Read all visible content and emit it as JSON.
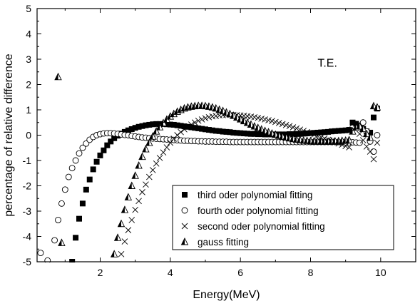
{
  "chart_data": {
    "type": "scatter",
    "title": "",
    "xlabel": "Energy(MeV)",
    "ylabel": "percentage of relative difference",
    "xlim": [
      0.2,
      11
    ],
    "ylim": [
      -5,
      5
    ],
    "x_ticks": [
      2,
      4,
      6,
      8,
      10
    ],
    "y_ticks": [
      -5,
      -4,
      -3,
      -2,
      -1,
      0,
      1,
      2,
      3,
      4,
      5
    ],
    "grid": false,
    "legend_position": "bottom-right",
    "annotations": [
      {
        "text": "T.E.",
        "x": 8.2,
        "y": 2.7
      }
    ],
    "series": [
      {
        "name": "third oder polynomial fitting",
        "marker": "filled-square",
        "x": [
          1.2,
          1.3,
          1.4,
          1.5,
          1.6,
          1.7,
          1.8,
          1.9,
          2.0,
          2.1,
          2.2,
          2.3,
          2.4,
          2.5,
          2.6,
          2.7,
          2.8,
          2.9,
          3.0,
          3.1,
          3.2,
          3.3,
          3.4,
          3.5,
          3.6,
          3.7,
          3.8,
          3.9,
          4.0,
          4.1,
          4.2,
          4.3,
          4.4,
          4.5,
          4.6,
          4.7,
          4.8,
          4.9,
          5.0,
          5.1,
          5.2,
          5.3,
          5.4,
          5.5,
          5.6,
          5.7,
          5.8,
          5.9,
          6.0,
          6.1,
          6.2,
          6.3,
          6.4,
          6.5,
          6.6,
          6.7,
          6.8,
          6.9,
          7.0,
          7.1,
          7.2,
          7.3,
          7.4,
          7.5,
          7.6,
          7.7,
          7.8,
          7.9,
          8.0,
          8.1,
          8.2,
          8.3,
          8.4,
          8.5,
          8.6,
          8.7,
          8.8,
          8.9,
          9.0,
          9.1,
          9.2,
          9.3,
          9.4,
          9.5,
          9.6,
          9.7,
          9.8,
          9.9
        ],
        "y": [
          -5.0,
          -4.05,
          -3.3,
          -2.7,
          -2.15,
          -1.75,
          -1.35,
          -1.05,
          -0.8,
          -0.6,
          -0.4,
          -0.25,
          -0.12,
          -0.02,
          0.06,
          0.13,
          0.19,
          0.24,
          0.29,
          0.33,
          0.36,
          0.39,
          0.41,
          0.43,
          0.44,
          0.44,
          0.44,
          0.43,
          0.42,
          0.41,
          0.39,
          0.37,
          0.35,
          0.33,
          0.31,
          0.29,
          0.27,
          0.25,
          0.23,
          0.21,
          0.19,
          0.17,
          0.16,
          0.14,
          0.13,
          0.12,
          0.1,
          0.09,
          0.08,
          0.07,
          0.06,
          0.05,
          0.05,
          0.04,
          0.04,
          0.03,
          0.03,
          0.03,
          0.03,
          0.03,
          0.03,
          0.03,
          0.04,
          0.04,
          0.05,
          0.05,
          0.06,
          0.07,
          0.08,
          0.09,
          0.1,
          0.11,
          0.12,
          0.13,
          0.15,
          0.16,
          0.17,
          0.18,
          0.19,
          0.21,
          0.5,
          0.45,
          0.35,
          0.25,
          0.15,
          0.1,
          0.7,
          1.05
        ]
      },
      {
        "name": "fourth oder polynomial fitting",
        "marker": "open-circle",
        "x": [
          0.3,
          0.5,
          0.7,
          0.8,
          0.9,
          1.0,
          1.1,
          1.2,
          1.3,
          1.4,
          1.5,
          1.6,
          1.7,
          1.8,
          1.9,
          2.0,
          2.1,
          2.2,
          2.3,
          2.4,
          2.5,
          2.6,
          2.7,
          2.8,
          2.9,
          3.0,
          3.1,
          3.2,
          3.3,
          3.4,
          3.5,
          3.6,
          3.7,
          3.8,
          3.9,
          4.0,
          4.1,
          4.2,
          4.3,
          4.4,
          4.5,
          4.6,
          4.7,
          4.8,
          4.9,
          5.0,
          5.1,
          5.2,
          5.3,
          5.4,
          5.5,
          5.6,
          5.7,
          5.8,
          5.9,
          6.0,
          6.1,
          6.2,
          6.3,
          6.4,
          6.5,
          6.6,
          6.7,
          6.8,
          6.9,
          7.0,
          7.1,
          7.2,
          7.3,
          7.4,
          7.5,
          7.6,
          7.7,
          7.8,
          7.9,
          8.0,
          8.1,
          8.2,
          8.3,
          8.4,
          8.5,
          8.6,
          8.7,
          8.8,
          8.9,
          9.0,
          9.1,
          9.2,
          9.3,
          9.4,
          9.5,
          9.6,
          9.7,
          9.8,
          9.9
        ],
        "y": [
          -4.65,
          -4.95,
          -4.15,
          -3.35,
          -2.7,
          -2.15,
          -1.65,
          -1.3,
          -1.0,
          -0.72,
          -0.5,
          -0.33,
          -0.18,
          -0.07,
          0.0,
          0.04,
          0.07,
          0.08,
          0.08,
          0.07,
          0.05,
          0.03,
          0.01,
          0.0,
          -0.03,
          -0.05,
          -0.07,
          -0.09,
          -0.1,
          -0.12,
          -0.13,
          -0.14,
          -0.15,
          -0.16,
          -0.17,
          -0.18,
          -0.19,
          -0.2,
          -0.21,
          -0.22,
          -0.22,
          -0.23,
          -0.23,
          -0.24,
          -0.24,
          -0.25,
          -0.25,
          -0.25,
          -0.26,
          -0.26,
          -0.26,
          -0.26,
          -0.27,
          -0.27,
          -0.27,
          -0.27,
          -0.27,
          -0.27,
          -0.27,
          -0.27,
          -0.27,
          -0.27,
          -0.27,
          -0.27,
          -0.27,
          -0.27,
          -0.27,
          -0.27,
          -0.27,
          -0.27,
          -0.27,
          -0.27,
          -0.27,
          -0.27,
          -0.27,
          -0.27,
          -0.27,
          -0.27,
          -0.27,
          -0.27,
          -0.27,
          -0.27,
          -0.27,
          -0.27,
          -0.27,
          -0.28,
          -0.28,
          -0.28,
          -0.29,
          -0.3,
          0.5,
          0.15,
          -0.25,
          -0.65,
          0.0
        ]
      },
      {
        "name": "second oder polynomial fitting",
        "marker": "x",
        "x": [
          2.6,
          2.7,
          2.8,
          2.9,
          3.0,
          3.1,
          3.2,
          3.3,
          3.4,
          3.5,
          3.6,
          3.7,
          3.8,
          3.9,
          4.0,
          4.1,
          4.2,
          4.3,
          4.4,
          4.5,
          4.6,
          4.7,
          4.8,
          4.9,
          5.0,
          5.1,
          5.2,
          5.3,
          5.4,
          5.5,
          5.6,
          5.7,
          5.8,
          5.9,
          6.0,
          6.1,
          6.2,
          6.3,
          6.4,
          6.5,
          6.6,
          6.7,
          6.8,
          6.9,
          7.0,
          7.1,
          7.2,
          7.3,
          7.4,
          7.5,
          7.6,
          7.7,
          7.8,
          7.9,
          8.0,
          8.1,
          8.2,
          8.3,
          8.4,
          8.5,
          8.6,
          8.7,
          8.8,
          8.9,
          9.0,
          9.1,
          9.2,
          9.3,
          9.4,
          9.5,
          9.6,
          9.7,
          9.8,
          9.9
        ],
        "y": [
          -4.7,
          -4.2,
          -3.75,
          -3.35,
          -2.95,
          -2.6,
          -2.25,
          -1.95,
          -1.65,
          -1.38,
          -1.12,
          -0.9,
          -0.68,
          -0.48,
          -0.3,
          -0.14,
          0.0,
          0.12,
          0.23,
          0.33,
          0.42,
          0.5,
          0.57,
          0.62,
          0.67,
          0.71,
          0.74,
          0.76,
          0.78,
          0.79,
          0.8,
          0.8,
          0.8,
          0.79,
          0.78,
          0.77,
          0.75,
          0.73,
          0.71,
          0.68,
          0.65,
          0.62,
          0.59,
          0.56,
          0.52,
          0.48,
          0.44,
          0.4,
          0.36,
          0.31,
          0.27,
          0.22,
          0.17,
          0.12,
          0.07,
          0.02,
          -0.03,
          -0.08,
          -0.13,
          -0.18,
          -0.23,
          -0.28,
          -0.33,
          -0.38,
          -0.43,
          -0.48,
          0.45,
          0.3,
          0.05,
          -0.2,
          -0.45,
          -0.65,
          -0.95,
          -0.3
        ]
      },
      {
        "name": "gauss fitting",
        "marker": "half-filled-triangle",
        "x": [
          0.8,
          0.9,
          2.4,
          2.5,
          2.6,
          2.7,
          2.8,
          2.9,
          3.0,
          3.1,
          3.2,
          3.3,
          3.4,
          3.5,
          3.6,
          3.7,
          3.8,
          3.9,
          4.0,
          4.1,
          4.2,
          4.3,
          4.4,
          4.5,
          4.6,
          4.7,
          4.8,
          4.9,
          5.0,
          5.1,
          5.2,
          5.3,
          5.4,
          5.5,
          5.6,
          5.7,
          5.8,
          5.9,
          6.0,
          6.1,
          6.2,
          6.3,
          6.4,
          6.5,
          6.6,
          6.7,
          6.8,
          6.9,
          7.0,
          7.1,
          7.2,
          7.3,
          7.4,
          7.5,
          7.6,
          7.7,
          7.8,
          7.9,
          8.0,
          8.1,
          8.2,
          8.3,
          8.4,
          8.5,
          8.6,
          8.7,
          8.8,
          8.9,
          9.0,
          9.1,
          9.2,
          9.3,
          9.4,
          9.5,
          9.6,
          9.7,
          9.8,
          9.9
        ],
        "y": [
          2.3,
          -4.25,
          -4.7,
          -4.05,
          -3.5,
          -2.95,
          -2.45,
          -2.0,
          -1.6,
          -1.2,
          -0.85,
          -0.55,
          -0.3,
          -0.05,
          0.15,
          0.32,
          0.48,
          0.62,
          0.74,
          0.84,
          0.93,
          1.0,
          1.06,
          1.1,
          1.13,
          1.15,
          1.16,
          1.16,
          1.15,
          1.13,
          1.1,
          1.06,
          1.01,
          0.96,
          0.9,
          0.84,
          0.77,
          0.7,
          0.63,
          0.56,
          0.49,
          0.42,
          0.35,
          0.29,
          0.23,
          0.17,
          0.12,
          0.07,
          0.02,
          -0.02,
          -0.06,
          -0.09,
          -0.12,
          -0.15,
          -0.17,
          -0.19,
          -0.21,
          -0.22,
          -0.23,
          -0.24,
          -0.24,
          -0.25,
          -0.25,
          -0.25,
          -0.24,
          -0.24,
          -0.23,
          -0.22,
          -0.21,
          -0.19,
          0.15,
          0.3,
          0.35,
          0.25,
          0.05,
          -0.1,
          1.15,
          1.1
        ]
      }
    ]
  }
}
